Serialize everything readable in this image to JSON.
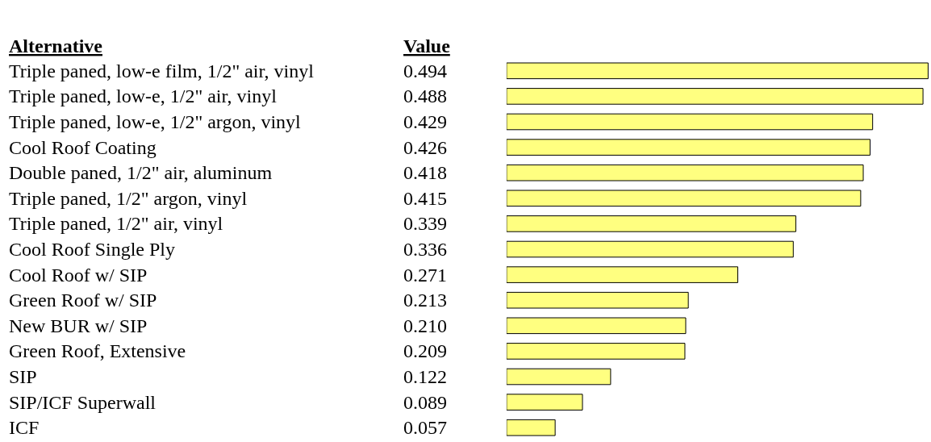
{
  "chart_data": {
    "type": "bar",
    "orientation": "horizontal",
    "ylabel": "Alternative",
    "xlabel": "Value",
    "categories": [
      "Triple paned, low-e film, 1/2\" air, vinyl",
      "Triple paned, low-e, 1/2\" air, vinyl",
      "Triple paned, low-e, 1/2\" argon, vinyl",
      "Cool Roof Coating",
      "Double paned, 1/2\" air, aluminum",
      "Triple paned, 1/2\" argon, vinyl",
      "Triple paned, 1/2\" air, vinyl",
      "Cool Roof Single Ply",
      "Cool Roof w/ SIP",
      "Green Roof w/ SIP",
      "New BUR w/ SIP",
      "Green Roof, Extensive",
      "SIP",
      "SIP/ICF Superwall",
      "ICF"
    ],
    "values": [
      0.494,
      0.488,
      0.429,
      0.426,
      0.418,
      0.415,
      0.339,
      0.336,
      0.271,
      0.213,
      0.21,
      0.209,
      0.122,
      0.089,
      0.057
    ],
    "value_labels": [
      "0.494",
      "0.488",
      "0.429",
      "0.426",
      "0.418",
      "0.415",
      "0.339",
      "0.336",
      "0.271",
      "0.213",
      "0.210",
      "0.209",
      "0.122",
      "0.089",
      "0.057"
    ],
    "color": "#ffff80"
  }
}
